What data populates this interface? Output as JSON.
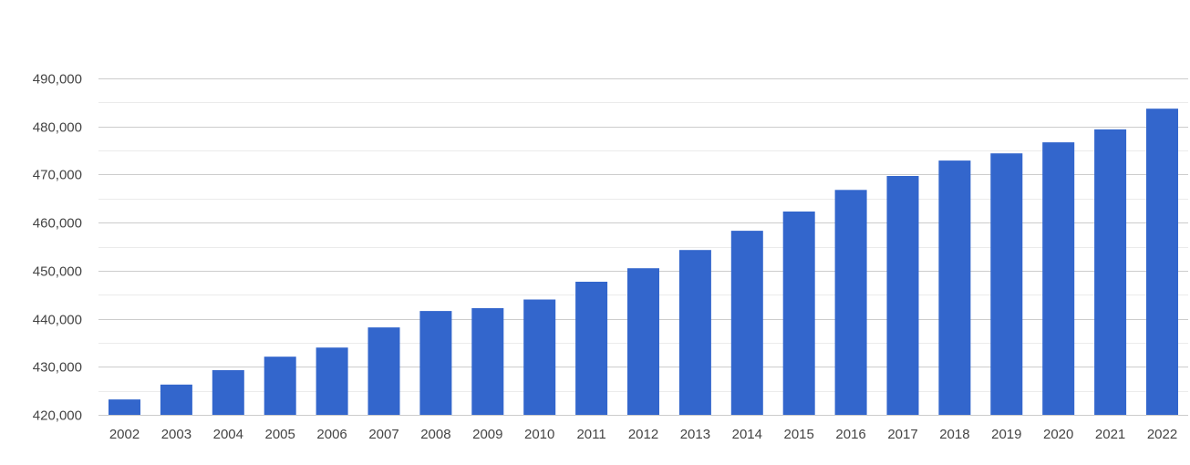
{
  "chart_data": {
    "type": "bar",
    "title": "",
    "xlabel": "",
    "ylabel": "",
    "categories": [
      "2002",
      "2003",
      "2004",
      "2005",
      "2006",
      "2007",
      "2008",
      "2009",
      "2010",
      "2011",
      "2012",
      "2013",
      "2014",
      "2015",
      "2016",
      "2017",
      "2018",
      "2019",
      "2020",
      "2021",
      "2022"
    ],
    "values": [
      423200,
      426300,
      429300,
      432100,
      434000,
      438200,
      441600,
      442200,
      444000,
      447700,
      450500,
      454300,
      458300,
      462300,
      466800,
      469700,
      472900,
      474400,
      476700,
      479400,
      483700
    ],
    "ylim": [
      420000,
      490000
    ],
    "yticks": [
      420000,
      430000,
      440000,
      450000,
      460000,
      470000,
      480000,
      490000
    ],
    "ytick_labels": [
      "420,000",
      "430,000",
      "440,000",
      "450,000",
      "460,000",
      "470,000",
      "480,000",
      "490,000"
    ],
    "grid": true,
    "legend": "none",
    "colors": {
      "bar": "#3366cc",
      "major_grid": "#cccccc",
      "minor_grid": "#ebebeb",
      "tick_text": "#444444"
    }
  }
}
